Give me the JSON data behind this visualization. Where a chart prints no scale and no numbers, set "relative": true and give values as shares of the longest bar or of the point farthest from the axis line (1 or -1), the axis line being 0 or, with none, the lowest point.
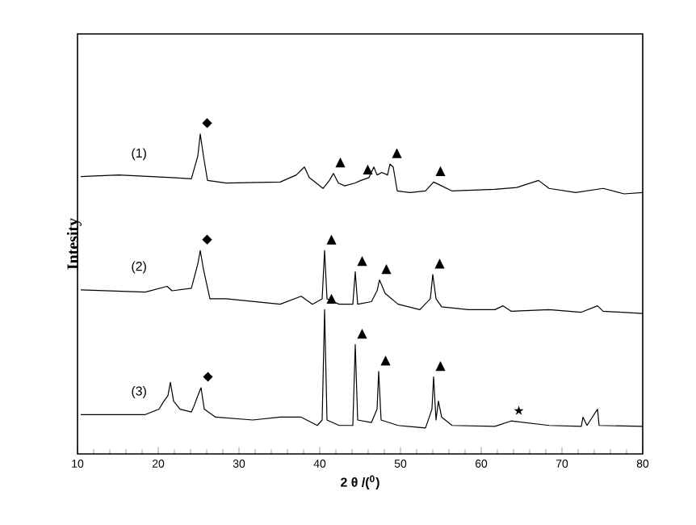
{
  "chart_data": {
    "type": "line",
    "relative": true,
    "xlabel": "2 θ /($^{0}$)",
    "ylabel": "Intesity",
    "xlim": [
      10,
      80
    ],
    "xticks": [
      10,
      20,
      30,
      40,
      50,
      60,
      70,
      80
    ],
    "series": [
      {
        "name": "(1)",
        "color": "#000000",
        "x": [
          10.4,
          15.1,
          21.7,
          24.1,
          24.9,
          25.2,
          25.6,
          26.1,
          28.4,
          35.1,
          37.1,
          38.1,
          38.7,
          40.4,
          41.2,
          41.7,
          42.3,
          43.1,
          44.4,
          45.1,
          46.1,
          46.7,
          47.1,
          47.7,
          48.4,
          48.7,
          49.1,
          49.6,
          51.1,
          53.1,
          54.1,
          55.1,
          56.4,
          61.7,
          64.4,
          67.1,
          68.4,
          71.7,
          75.1,
          77.7,
          80.0
        ],
        "values": [
          0.867,
          0.872,
          0.864,
          0.86,
          0.931,
          1.0,
          0.931,
          0.855,
          0.847,
          0.85,
          0.872,
          0.897,
          0.864,
          0.83,
          0.855,
          0.877,
          0.847,
          0.838,
          0.847,
          0.855,
          0.864,
          0.897,
          0.872,
          0.88,
          0.872,
          0.906,
          0.897,
          0.822,
          0.817,
          0.822,
          0.85,
          0.838,
          0.822,
          0.827,
          0.833,
          0.855,
          0.83,
          0.817,
          0.83,
          0.813,
          0.817
        ]
      },
      {
        "name": "(2)",
        "color": "#000000",
        "x": [
          10.4,
          18.4,
          21.1,
          21.7,
          24.1,
          24.9,
          25.2,
          25.6,
          26.4,
          28.4,
          35.1,
          37.7,
          39.1,
          40.3,
          40.6,
          40.9,
          42.4,
          44.1,
          44.4,
          44.7,
          46.4,
          47.1,
          47.4,
          48.1,
          49.7,
          52.4,
          53.7,
          54.0,
          54.4,
          55.1,
          58.4,
          61.7,
          62.7,
          63.7,
          68.4,
          72.4,
          74.4,
          75.1,
          80.0
        ],
        "values": [
          0.513,
          0.506,
          0.524,
          0.51,
          0.518,
          0.594,
          0.636,
          0.577,
          0.485,
          0.485,
          0.468,
          0.493,
          0.468,
          0.485,
          0.636,
          0.485,
          0.468,
          0.468,
          0.569,
          0.468,
          0.476,
          0.51,
          0.544,
          0.502,
          0.468,
          0.451,
          0.485,
          0.561,
          0.485,
          0.46,
          0.451,
          0.451,
          0.463,
          0.446,
          0.451,
          0.443,
          0.463,
          0.446,
          0.439
        ]
      },
      {
        "name": "(3)",
        "color": "#000000",
        "x": [
          10.4,
          18.4,
          20.1,
          20.7,
          21.2,
          21.5,
          21.9,
          22.7,
          24.1,
          24.4,
          24.9,
          25.3,
          25.7,
          27.1,
          31.7,
          35.1,
          37.7,
          39.7,
          40.3,
          40.6,
          40.9,
          42.4,
          44.1,
          44.4,
          44.7,
          46.4,
          47.1,
          47.3,
          47.6,
          49.7,
          53.1,
          53.9,
          54.1,
          54.4,
          54.7,
          55.1,
          56.4,
          61.7,
          63.7,
          68.4,
          72.4,
          72.6,
          73.1,
          74.4,
          74.6,
          80.0
        ],
        "values": [
          0.123,
          0.123,
          0.14,
          0.165,
          0.182,
          0.224,
          0.165,
          0.14,
          0.131,
          0.148,
          0.182,
          0.207,
          0.14,
          0.115,
          0.106,
          0.115,
          0.115,
          0.089,
          0.106,
          0.451,
          0.106,
          0.089,
          0.089,
          0.342,
          0.106,
          0.098,
          0.14,
          0.258,
          0.106,
          0.089,
          0.081,
          0.14,
          0.241,
          0.106,
          0.165,
          0.115,
          0.089,
          0.086,
          0.103,
          0.089,
          0.086,
          0.115,
          0.089,
          0.14,
          0.089,
          0.086
        ]
      }
    ],
    "annotations": [
      {
        "text": "◆",
        "x": 25.2,
        "y": 1.0
      },
      {
        "text": "◆",
        "x": 25.2,
        "y": 0.636
      },
      {
        "text": "◆",
        "x": 25.3,
        "y": 0.207
      },
      {
        "text": "▲",
        "x": 41.7,
        "y": 0.877
      },
      {
        "text": "▲",
        "x": 45.1,
        "y": 0.855
      },
      {
        "text": "▲",
        "x": 48.7,
        "y": 0.906
      },
      {
        "text": "▲",
        "x": 54.1,
        "y": 0.85
      },
      {
        "text": "▲",
        "x": 40.6,
        "y": 0.636
      },
      {
        "text": "▲",
        "x": 44.4,
        "y": 0.569
      },
      {
        "text": "▲",
        "x": 47.4,
        "y": 0.544
      },
      {
        "text": "▲",
        "x": 54.0,
        "y": 0.561
      },
      {
        "text": "▲",
        "x": 40.6,
        "y": 0.451
      },
      {
        "text": "▲",
        "x": 44.4,
        "y": 0.342
      },
      {
        "text": "▲",
        "x": 47.3,
        "y": 0.258
      },
      {
        "text": "▲",
        "x": 54.1,
        "y": 0.241
      },
      {
        "text": "★",
        "x": 63.7,
        "y": 0.103
      }
    ]
  }
}
